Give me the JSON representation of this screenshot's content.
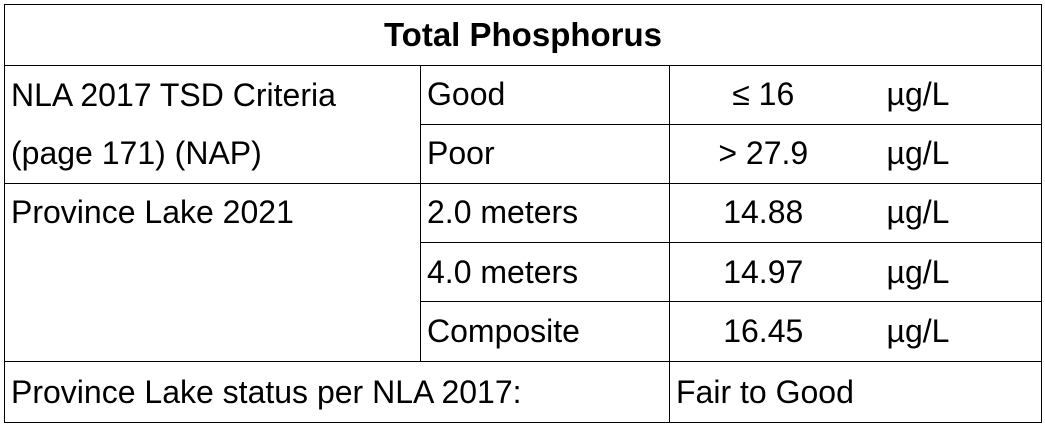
{
  "title": "Total Phosphorus",
  "criteria": {
    "label_line1": "NLA 2017 TSD Criteria",
    "label_line2": "(page 171) (NAP)",
    "rows": [
      {
        "category": "Good",
        "value": "≤ 16",
        "unit": "µg/L"
      },
      {
        "category": "Poor",
        "value": "> 27.9",
        "unit": "µg/L"
      }
    ]
  },
  "lake": {
    "label": "Province Lake 2021",
    "rows": [
      {
        "category": "2.0 meters",
        "value": "14.88",
        "unit": "µg/L"
      },
      {
        "category": "4.0 meters",
        "value": "14.97",
        "unit": "µg/L"
      },
      {
        "category": "Composite",
        "value": "16.45",
        "unit": "µg/L"
      }
    ]
  },
  "status": {
    "label": "Province Lake status per NLA 2017:",
    "value": "Fair to Good"
  }
}
